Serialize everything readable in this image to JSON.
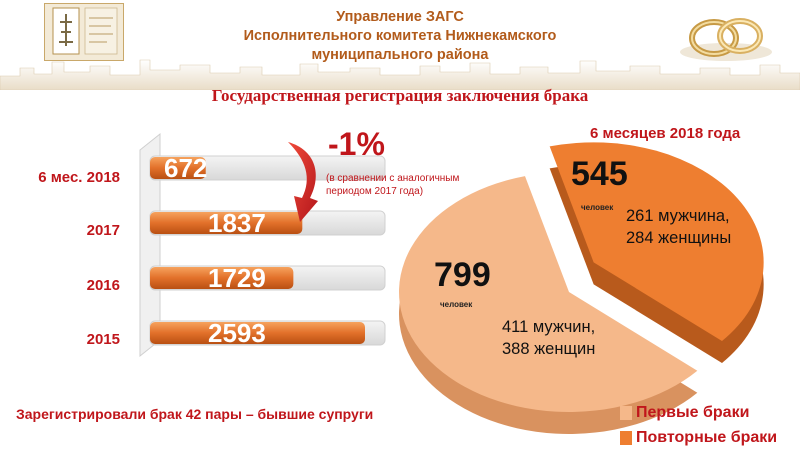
{
  "header": {
    "org_line1": "Управление ЗАГС",
    "org_line2": "Исполнительного комитета Нижнекамского",
    "org_line3": "муниципального района"
  },
  "subtitle": "Государственная регистрация заключения брака",
  "change": {
    "percent": "-1%",
    "note": "(в сравнении с аналогичным периодом 2017 года)"
  },
  "footer_text": "Зарегистрировали брак 42 пары – бывшие супруги",
  "colors": {
    "accent_red": "#c0161b",
    "bar_orange": "#e2702a",
    "first_marriage": "#f5b88a",
    "repeat_marriage": "#ee7e30"
  },
  "chart_data": [
    {
      "type": "bar",
      "orientation": "horizontal",
      "categories": [
        "6 мес. 2018",
        "2017",
        "2016",
        "2015"
      ],
      "values": [
        672,
        1837,
        1729,
        2593
      ],
      "value_labels": [
        "672",
        "1837",
        "1729",
        "2593"
      ]
    },
    {
      "type": "pie",
      "title": "6 месяцев 2018 года",
      "slices": [
        {
          "label": "Первые браки",
          "value": 799,
          "value_label": "799",
          "unit": "человек",
          "detail": [
            "411 мужчин,",
            "388 женщин"
          ],
          "color": "#f5b88a"
        },
        {
          "label": "Повторные браки",
          "value": 545,
          "value_label": "545",
          "unit": "человек",
          "detail": [
            "261 мужчина,",
            "284 женщины"
          ],
          "color": "#ee7e30"
        }
      ],
      "legend": [
        "Первые браки",
        "Повторные браки"
      ],
      "legend_position": "bottom-right"
    }
  ]
}
